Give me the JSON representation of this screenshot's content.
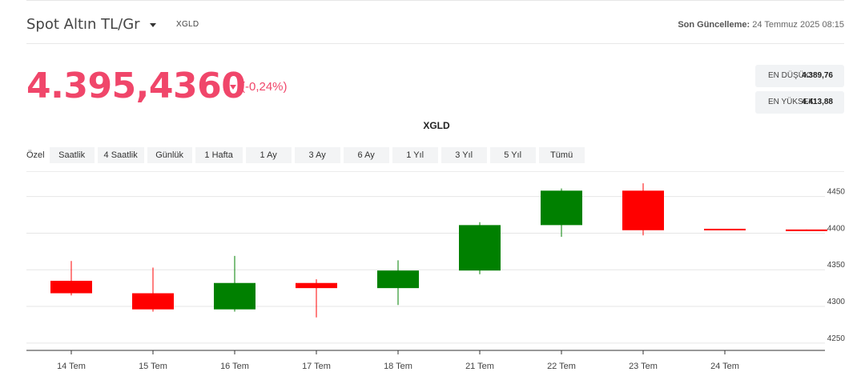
{
  "header": {
    "asset_title": "Spot Altın TL/Gr",
    "symbol": "XGLD",
    "update_label": "Son Güncelleme:",
    "update_value": "24 Temmuz 2025 08:15"
  },
  "quote": {
    "price": "4.395,4360",
    "change": "(-0,24%)",
    "low_label": "EN DÜŞÜK:",
    "low_value": "4.389,76",
    "high_label": "EN YÜKSEK:",
    "high_value": "4.413,88"
  },
  "ranges": {
    "label": "Özel",
    "buttons": [
      "Saatlik",
      "4 Saatlik",
      "Günlük",
      "1 Hafta",
      "1 Ay",
      "3 Ay",
      "6 Ay",
      "1 Yıl",
      "3 Yıl",
      "5 Yıl",
      "Tümü"
    ]
  },
  "colors": {
    "accent": "#f0466a",
    "up": "#008000",
    "down": "#ff0000"
  },
  "chart_data": {
    "type": "candlestick",
    "title": "XGLD",
    "categories": [
      "14 Tem",
      "15 Tem",
      "16 Tem",
      "17 Tem",
      "18 Tem",
      "21 Tem",
      "22 Tem",
      "23 Tem",
      "24 Tem",
      ""
    ],
    "ohlc": [
      {
        "open": 4335,
        "high": 4362,
        "low": 4315,
        "close": 4318
      },
      {
        "open": 4318,
        "high": 4353,
        "low": 4293,
        "close": 4296
      },
      {
        "open": 4296,
        "high": 4369,
        "low": 4293,
        "close": 4332
      },
      {
        "open": 4332,
        "high": 4337,
        "low": 4285,
        "close": 4325
      },
      {
        "open": 4325,
        "high": 4363,
        "low": 4302,
        "close": 4349
      },
      {
        "open": 4349,
        "high": 4415,
        "low": 4344,
        "close": 4411
      },
      {
        "open": 4411,
        "high": 4461,
        "low": 4395,
        "close": 4458
      },
      {
        "open": 4458,
        "high": 4468,
        "low": 4397,
        "close": 4404
      },
      {
        "open": 4406,
        "high": 4406,
        "low": 4405,
        "close": 4405
      },
      {
        "open": 4405,
        "high": 4405,
        "low": 4404,
        "close": 4404
      }
    ],
    "y_ticks": [
      4250,
      4300,
      4350,
      4400,
      4450
    ],
    "ylim": [
      4240,
      4478
    ],
    "grid": true,
    "y_axis_side": "right"
  }
}
